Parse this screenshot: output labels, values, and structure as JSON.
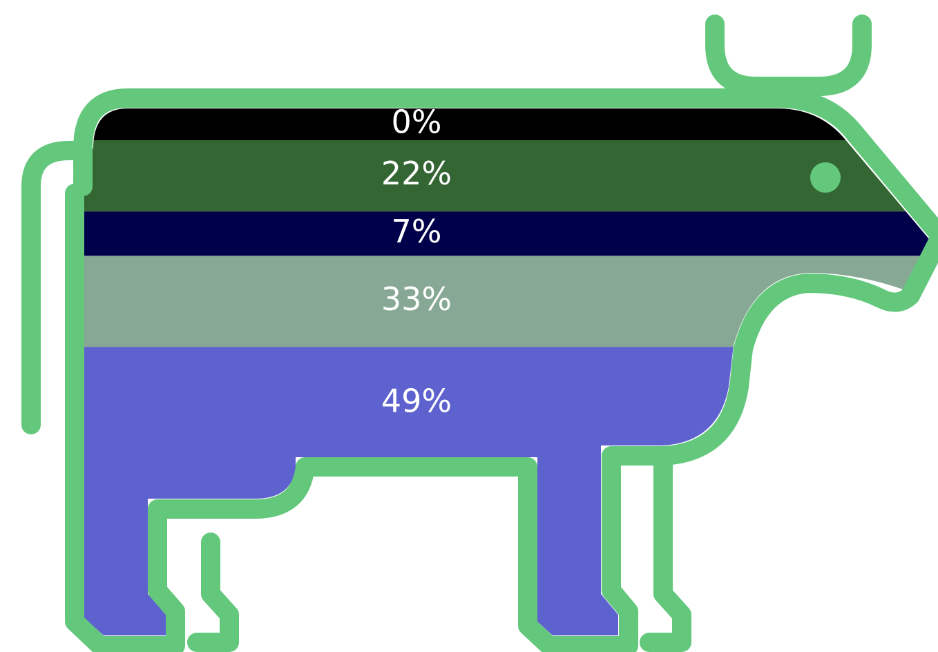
{
  "chart_data": {
    "type": "pictogram-stack",
    "values": [
      0,
      22,
      7,
      33,
      49
    ],
    "value_labels": [
      "0%",
      "22%",
      "7%",
      "33%",
      "49%"
    ],
    "colors": [
      "#000000",
      "#336633",
      "#00004a",
      "#86a894",
      "#5e62cf"
    ],
    "outline_color": "#63c87b"
  }
}
